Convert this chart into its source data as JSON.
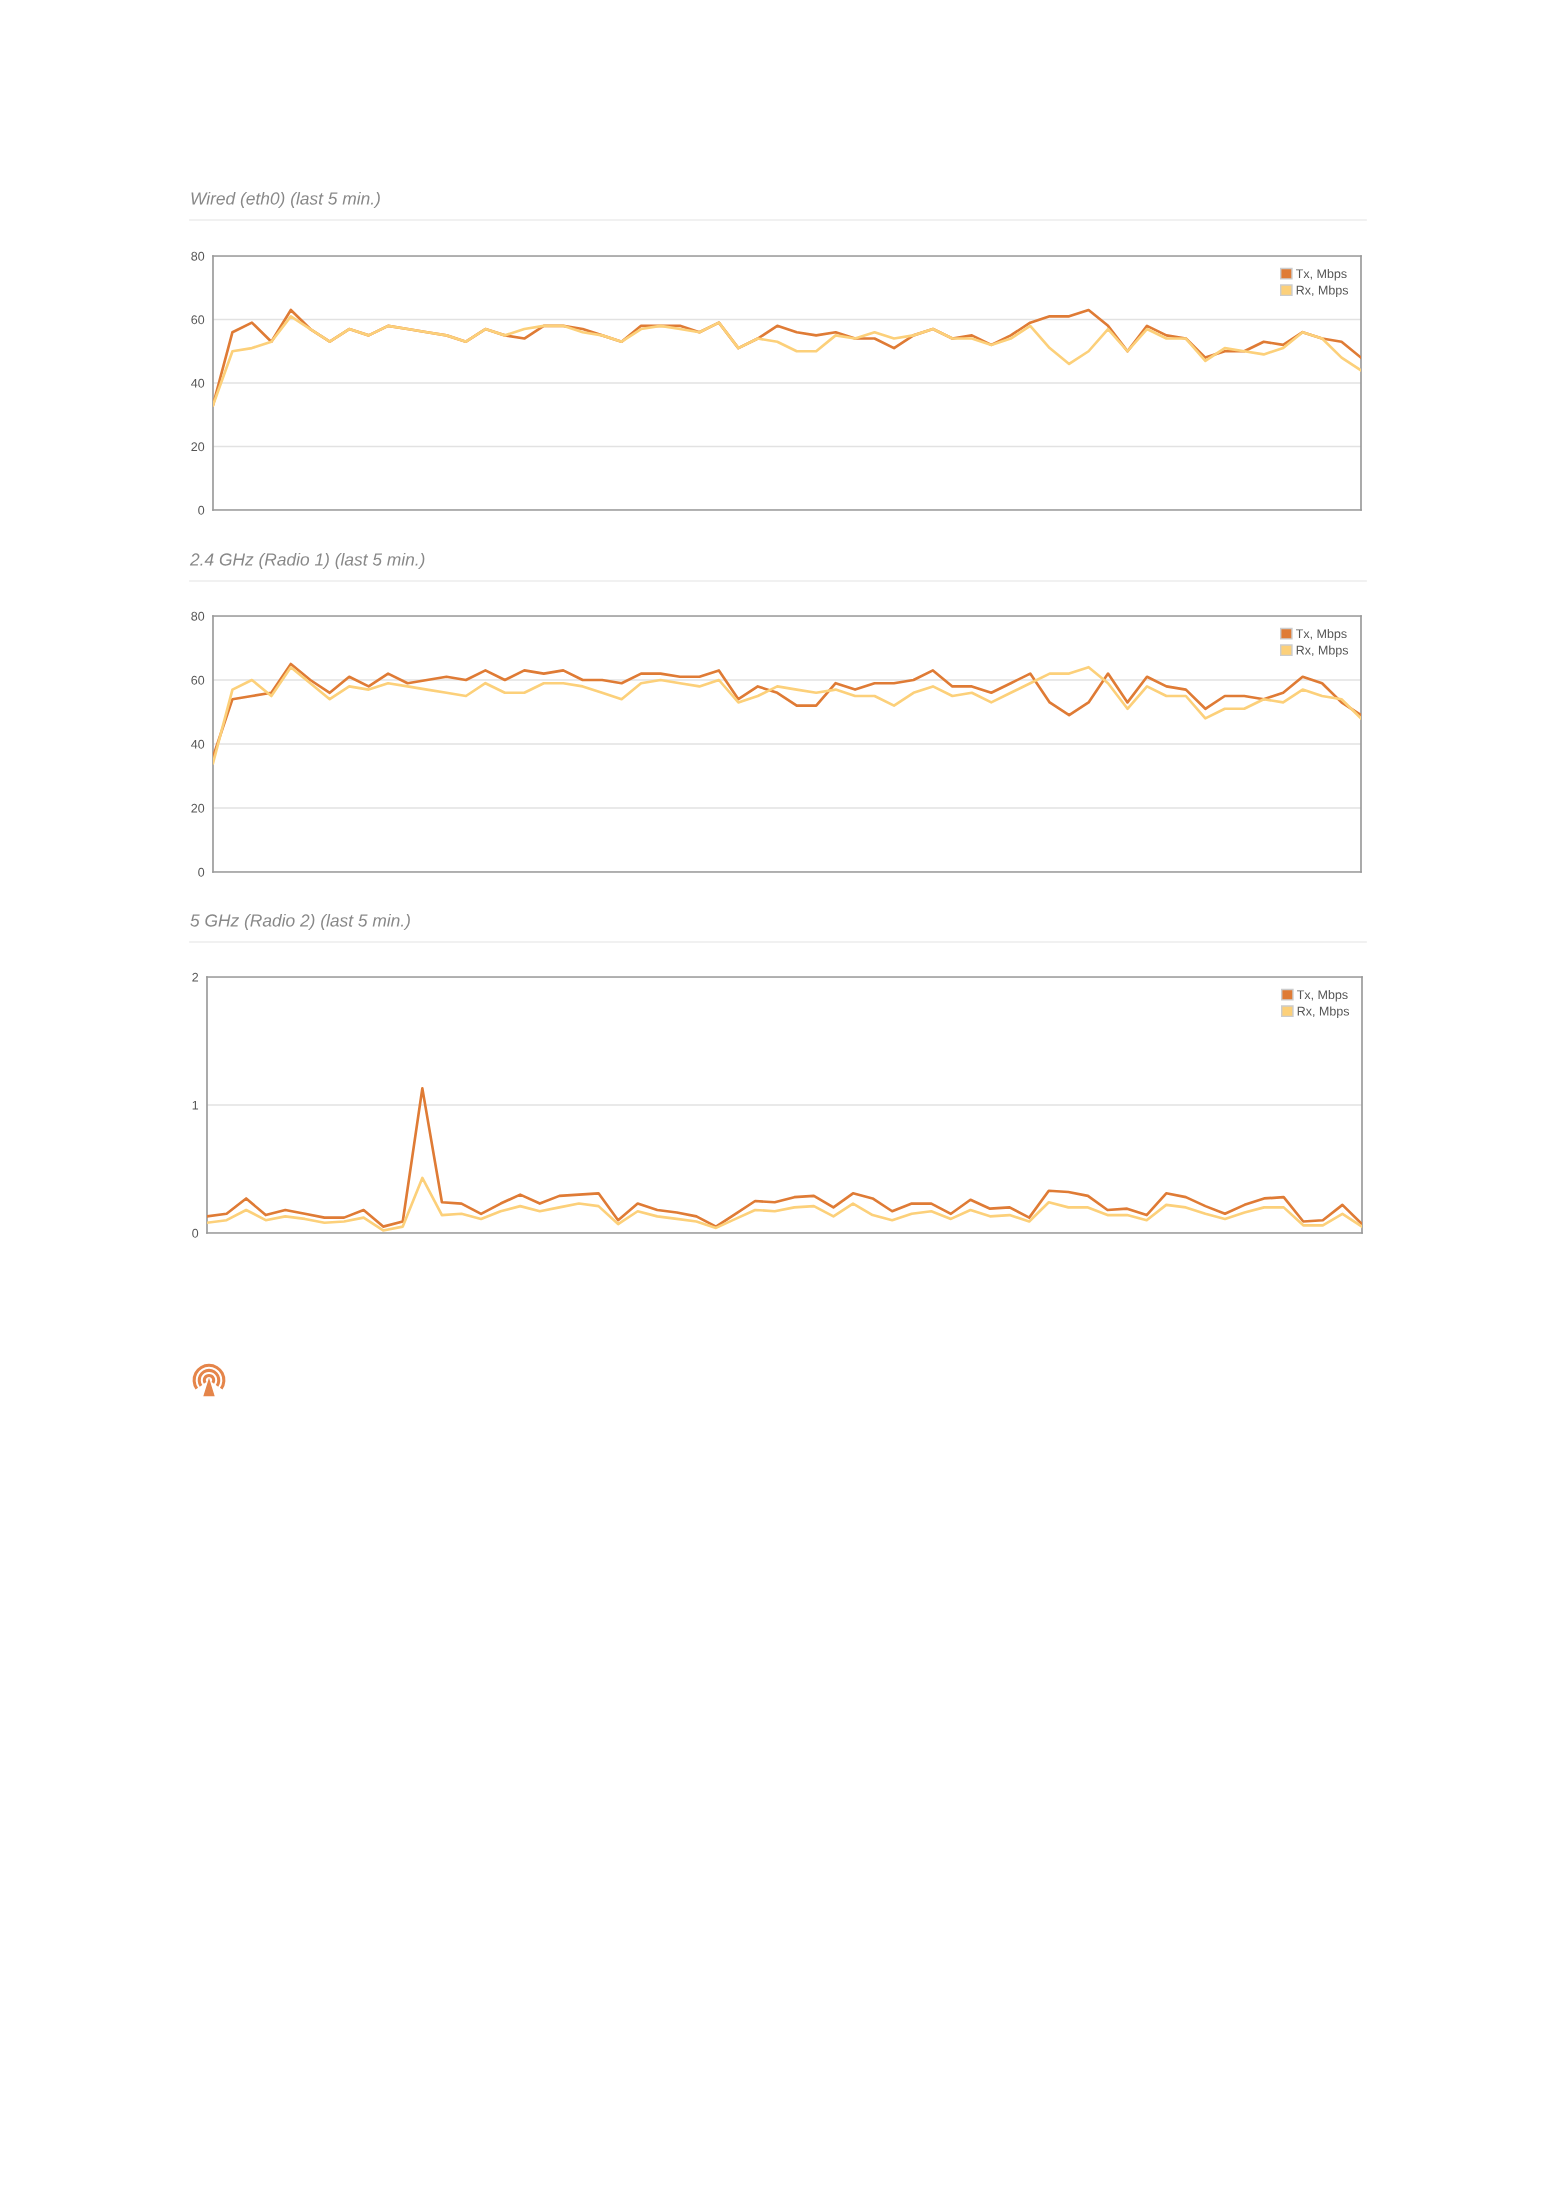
{
  "chart_data": [
    {
      "type": "line",
      "title": "Wired (eth0) (last 5 min.)",
      "categories": [
        null,
        null,
        null,
        null,
        null,
        null,
        null,
        null,
        null,
        null,
        null,
        null,
        null,
        null,
        null,
        null,
        null,
        null,
        null,
        null,
        null,
        null,
        null,
        null,
        null,
        null,
        null,
        null,
        null,
        null,
        null,
        null,
        null,
        null,
        null,
        null,
        null,
        null,
        null,
        null,
        null,
        null,
        null,
        null,
        null,
        null,
        null,
        null,
        null,
        null,
        null,
        null,
        null,
        null,
        null,
        null,
        null,
        null,
        null,
        null
      ],
      "ylim": [
        0,
        80
      ],
      "yticks": [
        0,
        20,
        40,
        60,
        80
      ],
      "grid": "y",
      "legend": "top right",
      "tick_labels": "y",
      "series": [
        {
          "name": "Tx, Mbps",
          "color": "#df7b35",
          "values": [
            33,
            56,
            59,
            53,
            63,
            57,
            53,
            57,
            55,
            58,
            57,
            56,
            55,
            53,
            57,
            55,
            54,
            58,
            58,
            57,
            55,
            53,
            58,
            58,
            58,
            56,
            59,
            51,
            54,
            58,
            56,
            55,
            56,
            54,
            54,
            51,
            55,
            57,
            54,
            55,
            52,
            55,
            59,
            61,
            61,
            63,
            58,
            50,
            58,
            55,
            54,
            48,
            50,
            50,
            53,
            52,
            56,
            54,
            53,
            48
          ]
        },
        {
          "name": "Rx, Mbps",
          "color": "#fcd07a",
          "values": [
            33,
            50,
            51,
            53,
            61,
            57,
            53,
            57,
            55,
            58,
            57,
            56,
            55,
            53,
            57,
            55,
            57,
            58,
            58,
            56,
            55,
            53,
            57,
            58,
            57,
            56,
            59,
            51,
            54,
            53,
            50,
            50,
            55,
            54,
            56,
            54,
            55,
            57,
            54,
            54,
            52,
            54,
            58,
            51,
            46,
            50,
            57,
            50,
            57,
            54,
            54,
            47,
            51,
            50,
            49,
            51,
            56,
            54,
            48,
            44
          ]
        }
      ]
    },
    {
      "type": "line",
      "title": "2.4 GHz (Radio 1) (last 5 min.)",
      "categories": [
        null,
        null,
        null,
        null,
        null,
        null,
        null,
        null,
        null,
        null,
        null,
        null,
        null,
        null,
        null,
        null,
        null,
        null,
        null,
        null,
        null,
        null,
        null,
        null,
        null,
        null,
        null,
        null,
        null,
        null,
        null,
        null,
        null,
        null,
        null,
        null,
        null,
        null,
        null,
        null,
        null,
        null,
        null,
        null,
        null,
        null,
        null,
        null,
        null,
        null,
        null,
        null,
        null,
        null,
        null,
        null,
        null,
        null,
        null,
        null
      ],
      "ylim": [
        0,
        80
      ],
      "yticks": [
        0,
        20,
        40,
        60,
        80
      ],
      "grid": "y",
      "legend": "top right",
      "tick_labels": "y",
      "series": [
        {
          "name": "Tx, Mbps",
          "color": "#df7b35",
          "values": [
            36,
            54,
            55,
            56,
            65,
            60,
            56,
            61,
            58,
            62,
            59,
            60,
            61,
            60,
            63,
            60,
            63,
            62,
            63,
            60,
            60,
            59,
            62,
            62,
            61,
            61,
            63,
            54,
            58,
            56,
            52,
            52,
            59,
            57,
            59,
            59,
            60,
            63,
            58,
            58,
            56,
            59,
            62,
            53,
            49,
            53,
            62,
            53,
            61,
            58,
            57,
            51,
            55,
            55,
            54,
            56,
            61,
            59,
            53,
            49
          ]
        },
        {
          "name": "Rx, Mbps",
          "color": "#fcd07a",
          "values": [
            34,
            57,
            60,
            55,
            64,
            59,
            54,
            58,
            57,
            59,
            58,
            57,
            56,
            55,
            59,
            56,
            56,
            59,
            59,
            58,
            56,
            54,
            59,
            60,
            59,
            58,
            60,
            53,
            55,
            58,
            57,
            56,
            57,
            55,
            55,
            52,
            56,
            58,
            55,
            56,
            53,
            56,
            59,
            62,
            62,
            64,
            59,
            51,
            58,
            55,
            55,
            48,
            51,
            51,
            54,
            53,
            57,
            55,
            54,
            48
          ]
        }
      ]
    },
    {
      "type": "line",
      "title": "5 GHz (Radio 2) (last 5 min.)",
      "categories": [
        null,
        null,
        null,
        null,
        null,
        null,
        null,
        null,
        null,
        null,
        null,
        null,
        null,
        null,
        null,
        null,
        null,
        null,
        null,
        null,
        null,
        null,
        null,
        null,
        null,
        null,
        null,
        null,
        null,
        null,
        null,
        null,
        null,
        null,
        null,
        null,
        null,
        null,
        null,
        null,
        null,
        null,
        null,
        null,
        null,
        null,
        null,
        null,
        null,
        null,
        null,
        null,
        null,
        null,
        null,
        null,
        null,
        null,
        null,
        null
      ],
      "ylim": [
        0,
        2
      ],
      "yticks": [
        0,
        1,
        2
      ],
      "grid": "y",
      "legend": "top right",
      "tick_labels": "y",
      "series": [
        {
          "name": "Tx, Mbps",
          "color": "#df7b35",
          "values": [
            0.13,
            0.15,
            0.27,
            0.14,
            0.18,
            0.15,
            0.12,
            0.12,
            0.18,
            0.05,
            0.09,
            1.13,
            0.24,
            0.23,
            0.15,
            0.23,
            0.3,
            0.23,
            0.29,
            0.3,
            0.31,
            0.1,
            0.23,
            0.18,
            0.16,
            0.13,
            0.05,
            0.15,
            0.25,
            0.24,
            0.28,
            0.29,
            0.2,
            0.31,
            0.27,
            0.17,
            0.23,
            0.23,
            0.15,
            0.26,
            0.19,
            0.2,
            0.12,
            0.33,
            0.32,
            0.29,
            0.18,
            0.19,
            0.14,
            0.31,
            0.28,
            0.21,
            0.15,
            0.22,
            0.27,
            0.28,
            0.09,
            0.1,
            0.22,
            0.07
          ]
        },
        {
          "name": "Rx, Mbps",
          "color": "#fcd07a",
          "values": [
            0.08,
            0.1,
            0.18,
            0.1,
            0.13,
            0.11,
            0.08,
            0.09,
            0.12,
            0.02,
            0.05,
            0.43,
            0.14,
            0.15,
            0.11,
            0.17,
            0.21,
            0.17,
            0.2,
            0.23,
            0.21,
            0.07,
            0.17,
            0.13,
            0.11,
            0.09,
            0.04,
            0.11,
            0.18,
            0.17,
            0.2,
            0.21,
            0.13,
            0.23,
            0.14,
            0.1,
            0.15,
            0.17,
            0.11,
            0.18,
            0.13,
            0.14,
            0.09,
            0.24,
            0.2,
            0.2,
            0.14,
            0.14,
            0.1,
            0.22,
            0.2,
            0.15,
            0.11,
            0.16,
            0.2,
            0.2,
            0.06,
            0.06,
            0.15,
            0.05
          ]
        }
      ]
    }
  ]
}
